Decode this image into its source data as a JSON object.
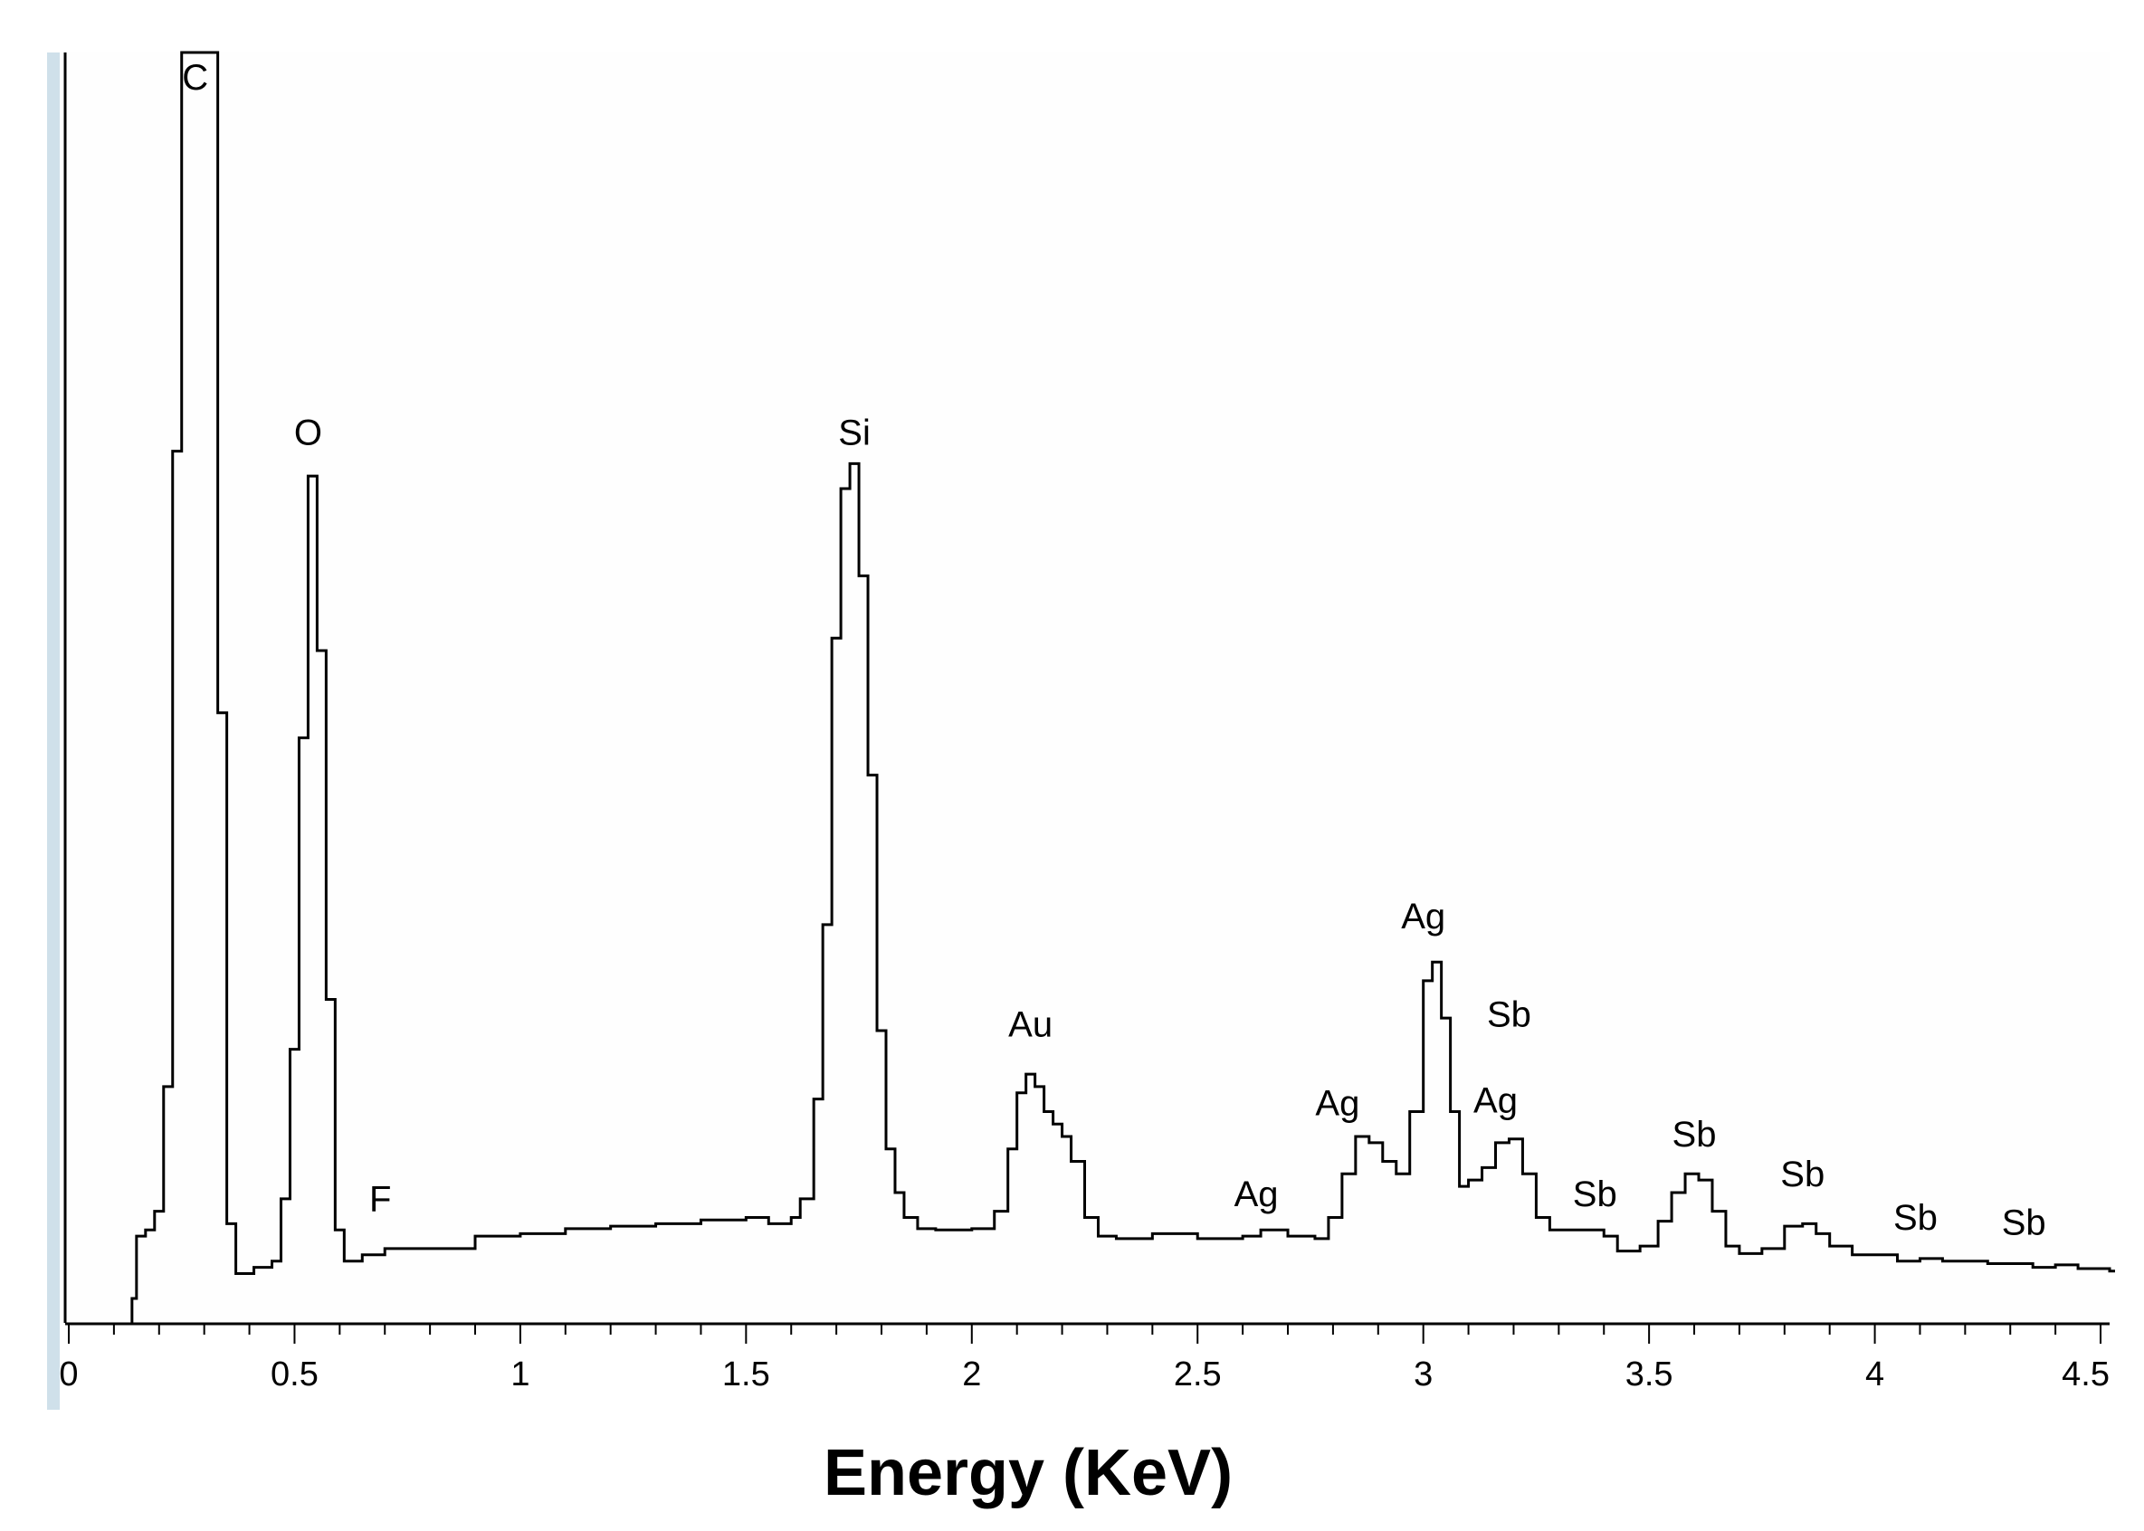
{
  "chart_data": {
    "type": "line",
    "title": "",
    "xlabel": "Energy (KeV)",
    "ylabel": "",
    "xlim": [
      0,
      4.52
    ],
    "ylim": [
      0,
      1000
    ],
    "grid": false,
    "legend": "none",
    "x_ticks": [
      {
        "value": 0,
        "label": "0"
      },
      {
        "value": 0.5,
        "label": "0.5"
      },
      {
        "value": 1,
        "label": "1"
      },
      {
        "value": 1.5,
        "label": "1.5"
      },
      {
        "value": 2,
        "label": "2"
      },
      {
        "value": 2.5,
        "label": "2.5"
      },
      {
        "value": 3,
        "label": "3"
      },
      {
        "value": 3.5,
        "label": "3.5"
      },
      {
        "value": 4,
        "label": "4"
      },
      {
        "value": 4.52,
        "label": "4.5"
      }
    ],
    "peak_labels": [
      {
        "label": "C",
        "x": 0.28,
        "y": 960
      },
      {
        "label": "O",
        "x": 0.53,
        "y": 675
      },
      {
        "label": "F",
        "x": 0.69,
        "y": 60
      },
      {
        "label": "Si",
        "x": 1.74,
        "y": 675
      },
      {
        "label": "Au",
        "x": 2.13,
        "y": 200
      },
      {
        "label": "Ag",
        "x": 2.63,
        "y": 64
      },
      {
        "label": "Ag",
        "x": 2.81,
        "y": 137
      },
      {
        "label": "Ag",
        "x": 3.0,
        "y": 287
      },
      {
        "label": "Sb",
        "x": 3.19,
        "y": 208
      },
      {
        "label": "Ag",
        "x": 3.16,
        "y": 139
      },
      {
        "label": "Sb",
        "x": 3.38,
        "y": 64
      },
      {
        "label": "Sb",
        "x": 3.6,
        "y": 112
      },
      {
        "label": "Sb",
        "x": 3.84,
        "y": 80
      },
      {
        "label": "Sb",
        "x": 4.09,
        "y": 45
      },
      {
        "label": "Sb",
        "x": 4.33,
        "y": 41
      }
    ],
    "series": [
      {
        "color": "#000000",
        "x": [
          0.14,
          0.15,
          0.17,
          0.19,
          0.21,
          0.23,
          0.25,
          0.33,
          0.35,
          0.37,
          0.41,
          0.45,
          0.47,
          0.49,
          0.51,
          0.53,
          0.55,
          0.57,
          0.59,
          0.61,
          0.65,
          0.7,
          0.75,
          0.9,
          1.0,
          1.1,
          1.2,
          1.3,
          1.4,
          1.5,
          1.55,
          1.6,
          1.62,
          1.65,
          1.67,
          1.69,
          1.71,
          1.73,
          1.75,
          1.77,
          1.79,
          1.81,
          1.83,
          1.85,
          1.88,
          1.92,
          2.0,
          2.05,
          2.08,
          2.1,
          2.12,
          2.14,
          2.16,
          2.18,
          2.2,
          2.22,
          2.25,
          2.28,
          2.32,
          2.4,
          2.5,
          2.6,
          2.64,
          2.7,
          2.76,
          2.79,
          2.82,
          2.85,
          2.88,
          2.91,
          2.94,
          2.97,
          3.0,
          3.02,
          3.04,
          3.06,
          3.08,
          3.1,
          3.13,
          3.16,
          3.19,
          3.22,
          3.25,
          3.28,
          3.35,
          3.4,
          3.43,
          3.48,
          3.52,
          3.55,
          3.58,
          3.61,
          3.64,
          3.67,
          3.7,
          3.75,
          3.8,
          3.84,
          3.87,
          3.9,
          3.95,
          4.05,
          4.1,
          4.15,
          4.25,
          4.35,
          4.4,
          4.45,
          4.52
        ],
        "values": [
          0,
          50,
          55,
          70,
          170,
          680,
          1000,
          470,
          60,
          20,
          25,
          30,
          80,
          200,
          450,
          660,
          520,
          240,
          55,
          30,
          35,
          40,
          40,
          50,
          52,
          56,
          58,
          60,
          63,
          65,
          60,
          65,
          80,
          160,
          300,
          530,
          650,
          670,
          580,
          420,
          215,
          120,
          85,
          65,
          56,
          55,
          56,
          70,
          120,
          165,
          180,
          170,
          150,
          140,
          130,
          110,
          65,
          50,
          48,
          52,
          48,
          50,
          55,
          50,
          48,
          65,
          100,
          130,
          125,
          110,
          100,
          150,
          255,
          270,
          225,
          150,
          90,
          95,
          105,
          125,
          128,
          100,
          65,
          55,
          55,
          50,
          38,
          42,
          62,
          85,
          100,
          95,
          70,
          42,
          36,
          40,
          58,
          60,
          52,
          42,
          35,
          30,
          32,
          30,
          28,
          25,
          27,
          24,
          22
        ]
      }
    ]
  }
}
